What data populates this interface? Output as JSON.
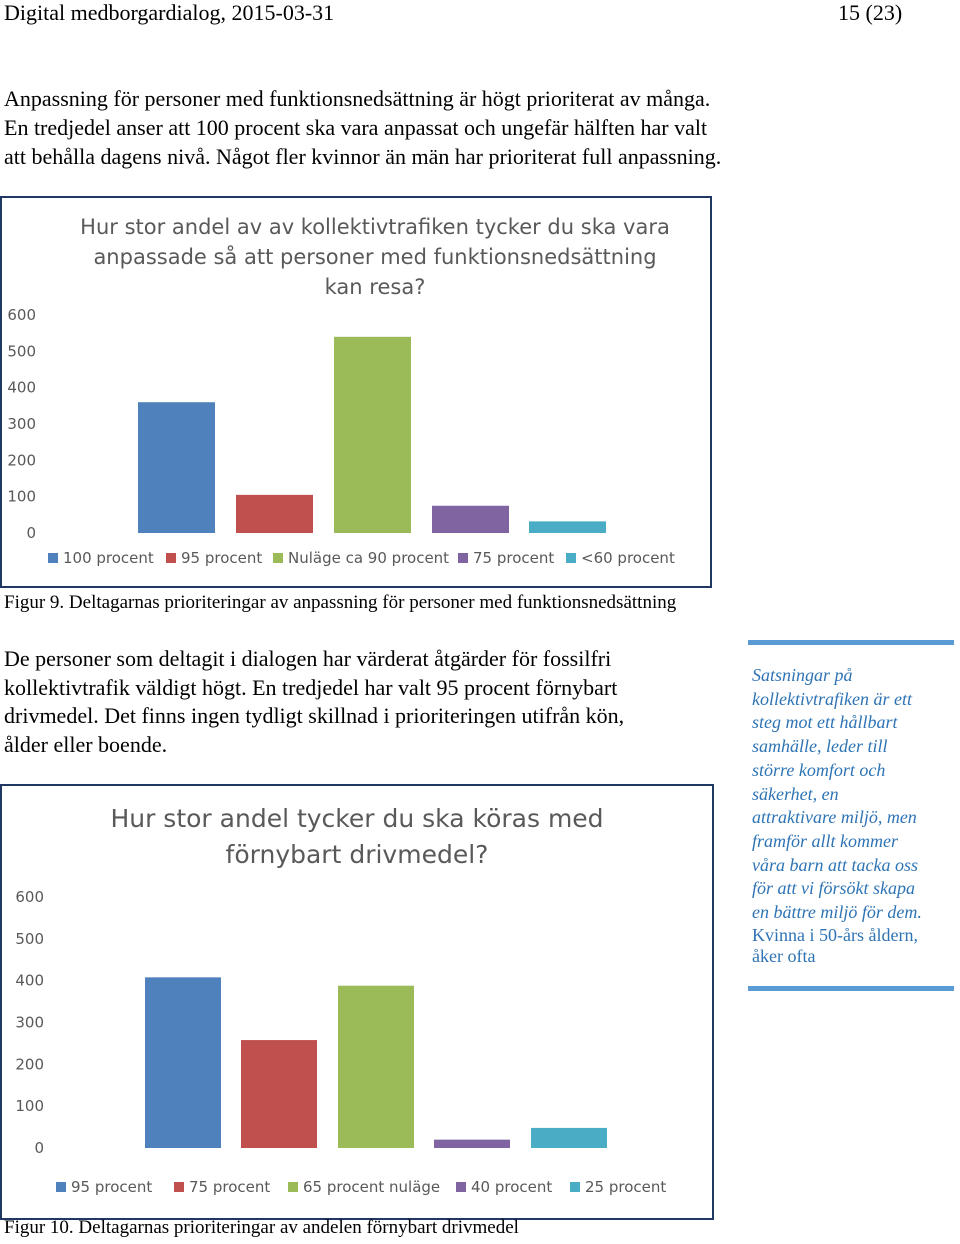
{
  "header": {
    "left": "Digital medborgardialog, 2015-03-31",
    "right": "15 (23)"
  },
  "intro_paragraph": {
    "line1": "Anpassning för personer med funktionsnedsättning är högt prioriterat av många.",
    "line2": "En tredjedel anser att 100 procent ska vara anpassat och ungefär hälften har valt",
    "line3": "att behålla dagens nivå. Något fler kvinnor än män har prioriterat full anpassning."
  },
  "figure9": {
    "caption": "Figur 9. Deltagarnas prioriteringar av anpassning för personer med funktionsnedsättning"
  },
  "second_paragraph": {
    "line1": "De personer som deltagit i dialogen har värderat åtgärder för fossilfri",
    "line2": "kollektivtrafik väldigt högt. En tredjedel har valt 95 procent förnybart",
    "line3": "drivmedel. Det finns ingen tydligt skillnad i prioriteringen utifrån kön,",
    "line4": "ålder eller boende."
  },
  "quote": {
    "lines": [
      "Satsningar på",
      "kollektivtrafiken är ett",
      "steg mot ett hållbart",
      "samhälle, leder till",
      "större komfort och",
      "säkerhet, en",
      "attraktivare miljö, men",
      "framför allt kommer",
      "våra barn att tacka oss",
      "för att vi försökt skapa",
      "en bättre miljö för dem."
    ],
    "attribution_line1": "Kvinna i 50-års åldern,",
    "attribution_line2": "åker ofta",
    "color": "#2e74b5"
  },
  "figure10": {
    "caption": "Figur 10. Deltagarnas prioriteringar av andelen förnybart drivmedel"
  },
  "chart_data": [
    {
      "type": "bar",
      "title_lines": [
        "Hur stor andel av av kollektivtrafiken tycker du ska vara",
        "anpassade så att personer med funktionsnedsättning",
        "kan resa?"
      ],
      "categories": [
        "100 procent",
        "95 procent",
        "Nuläge ca 90 procent",
        "75 procent",
        "<60 procent"
      ],
      "values": [
        360,
        105,
        540,
        75,
        32
      ],
      "colors": [
        "#4f81bd",
        "#c0504d",
        "#9bbb59",
        "#8064a2",
        "#4bacc6"
      ],
      "yticks": [
        "0",
        "100",
        "200",
        "300",
        "400",
        "500",
        "600"
      ],
      "ylim": [
        0,
        600
      ],
      "legend": "bottom",
      "grid": false
    },
    {
      "type": "bar",
      "title_lines": [
        "Hur stor andel tycker du ska köras med",
        "förnybart drivmedel?"
      ],
      "categories": [
        "95 procent",
        "75 procent",
        "65 procent nuläge",
        "40 procent",
        "25 procent"
      ],
      "values": [
        408,
        258,
        388,
        20,
        48
      ],
      "colors": [
        "#4f81bd",
        "#c0504d",
        "#9bbb59",
        "#8064a2",
        "#4bacc6"
      ],
      "yticks": [
        "0",
        "100",
        "200",
        "300",
        "400",
        "500",
        "600"
      ],
      "ylim": [
        0,
        600
      ],
      "legend": "bottom",
      "grid": false
    }
  ]
}
